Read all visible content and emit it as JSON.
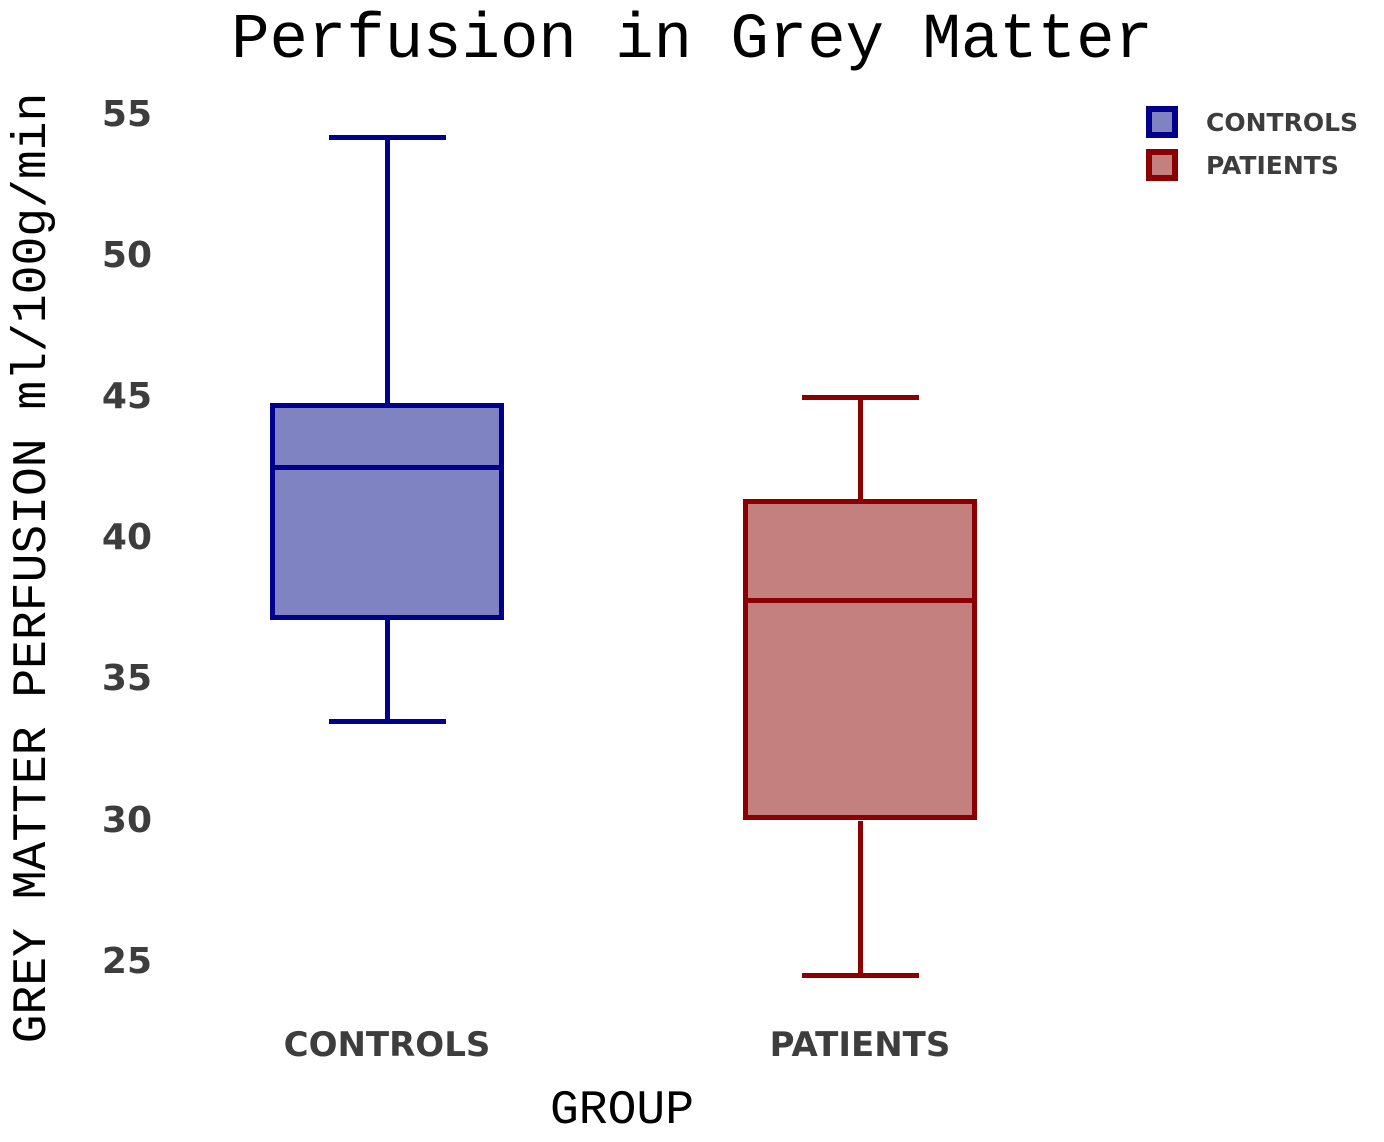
{
  "chart_data": {
    "type": "boxplot",
    "title": "Perfusion in Grey Matter",
    "xlabel": "GROUP",
    "ylabel": "GREY MATTER PERFUSION ml/100g/min",
    "categories": [
      "CONTROLS",
      "PATIENTS"
    ],
    "yticks": [
      55,
      50,
      45,
      40,
      35,
      30,
      25
    ],
    "ylim": [
      23.5,
      56
    ],
    "grid": false,
    "legend_position": "upper right",
    "tick_label_color": "#3d3d3d",
    "text_color": "#000000",
    "series": [
      {
        "name": "CONTROLS",
        "whisker_low": 33.5,
        "q1": 37.1,
        "median": 42.5,
        "q3": 44.8,
        "whisker_high": 54.2,
        "edge_color": "#00008b",
        "fill_color": "#8083c2"
      },
      {
        "name": "PATIENTS",
        "whisker_low": 24.5,
        "q1": 30.0,
        "median": 37.8,
        "q3": 41.4,
        "whisker_high": 45.0,
        "edge_color": "#8b0000",
        "fill_color": "#c47f7f"
      }
    ],
    "legend": [
      {
        "label": "CONTROLS",
        "edge_color": "#00008b",
        "fill_color": "#8083c2"
      },
      {
        "label": "PATIENTS",
        "edge_color": "#8b0000",
        "fill_color": "#c47f7f"
      }
    ]
  }
}
